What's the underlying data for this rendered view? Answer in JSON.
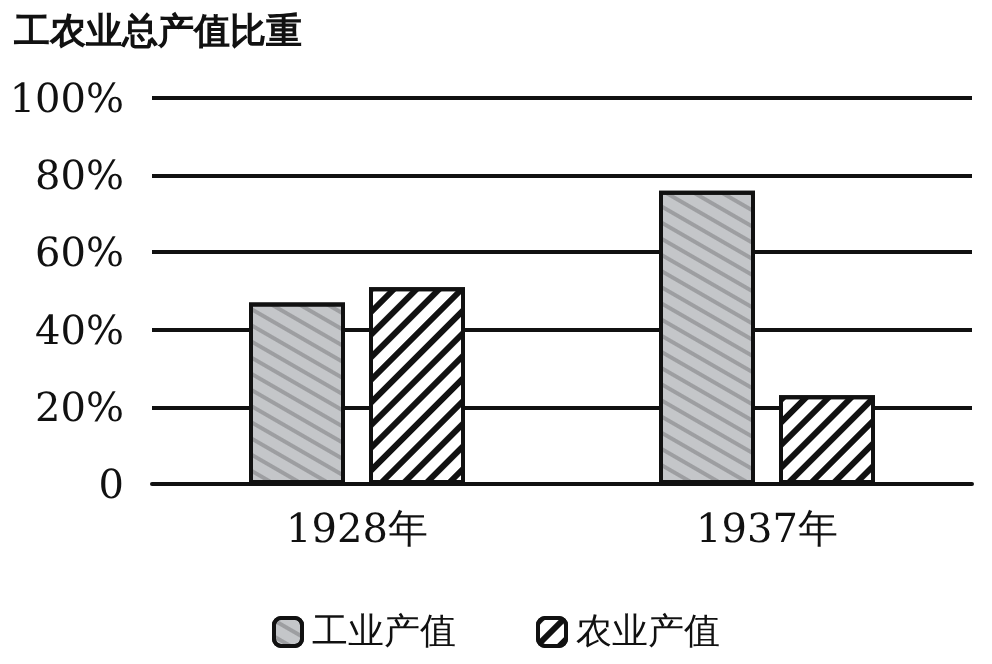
{
  "chart_data": {
    "type": "bar",
    "title": "工农业总产值比重",
    "categories": [
      "1928年",
      "1937年"
    ],
    "series": [
      {
        "name": "工业产值",
        "color": "#c4c6c9",
        "values": [
          47,
          76
        ]
      },
      {
        "name": "农业产值",
        "color": "#ffffff",
        "values": [
          51,
          23
        ]
      }
    ],
    "ylim": [
      0,
      100
    ],
    "yticks": [
      {
        "value": 0,
        "label": "0"
      },
      {
        "value": 20,
        "label": "20%"
      },
      {
        "value": 40,
        "label": "40%"
      },
      {
        "value": 60,
        "label": "60%"
      },
      {
        "value": 80,
        "label": "80%"
      },
      {
        "value": 100,
        "label": "100%"
      }
    ],
    "grid": "y",
    "legend": "bottom"
  }
}
